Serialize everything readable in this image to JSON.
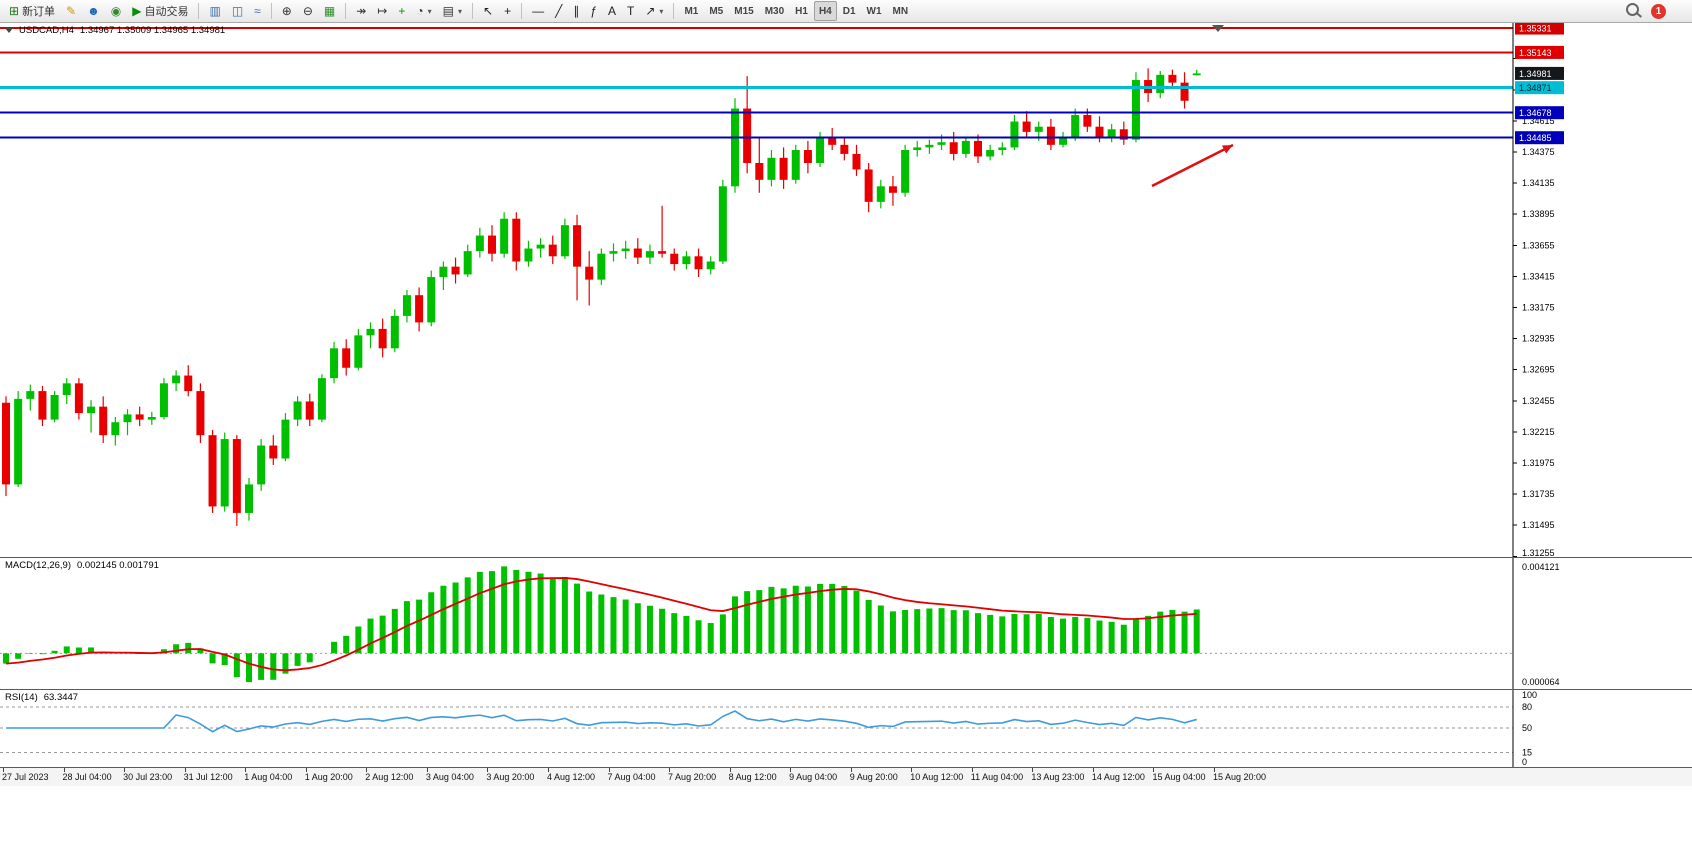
{
  "toolbar": {
    "groups": [
      {
        "name": "trade",
        "buttons": [
          {
            "name": "new-order",
            "glyph": "⊞",
            "color": "#1a7a1a",
            "label": "新订单"
          },
          {
            "name": "metaeditor",
            "glyph": "✎",
            "color": "#c8960c"
          },
          {
            "name": "mql-community",
            "glyph": "☻",
            "color": "#1565c0"
          },
          {
            "name": "news",
            "glyph": "◉",
            "color": "#2e8b2e"
          },
          {
            "name": "auto-trading",
            "glyph": "▶",
            "color": "#0a8f0a",
            "label": "自动交易"
          }
        ]
      },
      {
        "name": "chart-types",
        "buttons": [
          {
            "name": "bar-chart",
            "glyph": "▥",
            "color": "#3a6ea5"
          },
          {
            "name": "candlestick-chart",
            "glyph": "◫",
            "color": "#3a6ea5"
          },
          {
            "name": "line-chart",
            "glyph": "≈",
            "color": "#3a6ea5"
          }
        ]
      },
      {
        "name": "zoom",
        "buttons": [
          {
            "name": "zoom-in",
            "glyph": "⊕",
            "color": "#333333"
          },
          {
            "name": "zoom-out",
            "glyph": "⊖",
            "color": "#333333"
          },
          {
            "name": "tile-windows",
            "glyph": "▦",
            "color": "#2e8b2e"
          }
        ]
      },
      {
        "name": "chart-controls",
        "buttons": [
          {
            "name": "auto-scroll",
            "glyph": "↠",
            "color": "#333333"
          },
          {
            "name": "chart-shift",
            "glyph": "↦",
            "color": "#333333"
          },
          {
            "name": "indicators",
            "glyph": "+",
            "color": "#0a8f0a"
          },
          {
            "name": "periods",
            "glyph": "◔",
            "color": "#333333",
            "dropdown": true
          },
          {
            "name": "templates",
            "glyph": "▤",
            "color": "#333333",
            "dropdown": true
          }
        ]
      },
      {
        "name": "cursor-tools",
        "buttons": [
          {
            "name": "cursor",
            "glyph": "↖",
            "color": "#222222"
          },
          {
            "name": "crosshair",
            "glyph": "+",
            "color": "#222222"
          }
        ]
      },
      {
        "name": "line-tools",
        "buttons": [
          {
            "name": "horizontal-line",
            "glyph": "—",
            "color": "#222222"
          },
          {
            "name": "trendline",
            "glyph": "╱",
            "color": "#222222"
          },
          {
            "name": "equidistant-channel",
            "glyph": "∥",
            "color": "#222222"
          },
          {
            "name": "fibonacci",
            "glyph": "ƒ",
            "color": "#222222"
          },
          {
            "name": "text",
            "glyph": "A",
            "color": "#222222"
          },
          {
            "name": "text-label",
            "glyph": "T",
            "color": "#222222"
          },
          {
            "name": "arrows",
            "glyph": "↗",
            "color": "#222222",
            "dropdown": true
          }
        ]
      }
    ],
    "timeframes": {
      "items": [
        "M1",
        "M5",
        "M15",
        "M30",
        "H1",
        "H4",
        "D1",
        "W1",
        "MN"
      ],
      "active": "H4"
    },
    "right": {
      "search_name": "search",
      "notification_count": "1"
    }
  },
  "chart": {
    "header": {
      "symbol_period": "USDCAD,H4",
      "ohlc": "1.34967 1.35009 1.34965 1.34981"
    },
    "y_axis": {
      "start": 1.31255,
      "step": 0.0024,
      "count": 17,
      "decimals": 5
    },
    "levels": [
      {
        "price": 1.35331,
        "label": "1.35331",
        "color": "#d40000",
        "text": "#ffffff",
        "width": 2
      },
      {
        "price": 1.35143,
        "label": "1.35143",
        "color": "#e00000",
        "text": "#ffffff",
        "width": 2
      },
      {
        "price": 1.34871,
        "label": "1.34871",
        "color": "#00bcd4",
        "text": "#00262e",
        "width": 3
      },
      {
        "price": 1.34678,
        "label": "1.34678",
        "color": "#0000bb",
        "text": "#ffffff",
        "width": 2
      },
      {
        "price": 1.34485,
        "label": "1.34485",
        "color": "#0000bb",
        "text": "#ffffff",
        "width": 2
      }
    ],
    "bid": {
      "price": 1.34981,
      "label": "1.34981",
      "color": "#14181c",
      "text": "#ffffff"
    },
    "arrow": {
      "from": [
        1152,
        163
      ],
      "to": [
        1233,
        122
      ],
      "color": "#e01010"
    },
    "candle_colors": {
      "up": "#00bf00",
      "down": "#e80000"
    }
  },
  "chart_data": {
    "type": "candlestick",
    "symbol": "USDCAD",
    "timeframe": "H4",
    "y_range": [
      1.3125,
      1.3537
    ],
    "x_labels": [
      "27 Jul 2023",
      "28 Jul 04:00",
      "30 Jul 23:00",
      "31 Jul 12:00",
      "1 Aug 04:00",
      "1 Aug 20:00",
      "2 Aug 12:00",
      "3 Aug 04:00",
      "3 Aug 20:00",
      "4 Aug 12:00",
      "7 Aug 04:00",
      "7 Aug 20:00",
      "8 Aug 12:00",
      "9 Aug 04:00",
      "9 Aug 20:00",
      "10 Aug 12:00",
      "11 Aug 04:00",
      "13 Aug 23:00",
      "14 Aug 12:00",
      "15 Aug 04:00",
      "15 Aug 20:00"
    ],
    "ohlc": [
      [
        1.3244,
        1.3249,
        1.3172,
        1.3181
      ],
      [
        1.3181,
        1.3253,
        1.3179,
        1.3247
      ],
      [
        1.3247,
        1.3258,
        1.3238,
        1.3253
      ],
      [
        1.3253,
        1.3257,
        1.3226,
        1.3231
      ],
      [
        1.3231,
        1.3253,
        1.3229,
        1.325
      ],
      [
        1.325,
        1.3263,
        1.3243,
        1.3259
      ],
      [
        1.3259,
        1.3263,
        1.3231,
        1.3236
      ],
      [
        1.3236,
        1.3246,
        1.3221,
        1.3241
      ],
      [
        1.3241,
        1.3249,
        1.3213,
        1.3219
      ],
      [
        1.3219,
        1.3233,
        1.3211,
        1.3229
      ],
      [
        1.3229,
        1.3239,
        1.3219,
        1.3235
      ],
      [
        1.3235,
        1.3241,
        1.3226,
        1.3231
      ],
      [
        1.3231,
        1.3237,
        1.3227,
        1.3233
      ],
      [
        1.3233,
        1.3263,
        1.3231,
        1.3259
      ],
      [
        1.3259,
        1.3269,
        1.3253,
        1.3265
      ],
      [
        1.3265,
        1.3273,
        1.3249,
        1.3253
      ],
      [
        1.3253,
        1.3259,
        1.3213,
        1.3219
      ],
      [
        1.3219,
        1.3223,
        1.3159,
        1.3164
      ],
      [
        1.3164,
        1.3221,
        1.316,
        1.3216
      ],
      [
        1.3216,
        1.3219,
        1.3149,
        1.3159
      ],
      [
        1.3159,
        1.3186,
        1.3153,
        1.3181
      ],
      [
        1.3181,
        1.3216,
        1.3176,
        1.3211
      ],
      [
        1.3211,
        1.3219,
        1.3196,
        1.3201
      ],
      [
        1.3201,
        1.3236,
        1.3199,
        1.3231
      ],
      [
        1.3231,
        1.3249,
        1.3226,
        1.3245
      ],
      [
        1.3245,
        1.3251,
        1.3226,
        1.3231
      ],
      [
        1.3231,
        1.3266,
        1.3229,
        1.3263
      ],
      [
        1.3263,
        1.3291,
        1.3259,
        1.3286
      ],
      [
        1.3286,
        1.3293,
        1.3265,
        1.3271
      ],
      [
        1.3271,
        1.3301,
        1.3269,
        1.3296
      ],
      [
        1.3296,
        1.3306,
        1.3286,
        1.3301
      ],
      [
        1.3301,
        1.3309,
        1.3279,
        1.3286
      ],
      [
        1.3286,
        1.3316,
        1.3283,
        1.3311
      ],
      [
        1.3311,
        1.3331,
        1.3306,
        1.3327
      ],
      [
        1.3327,
        1.3333,
        1.3299,
        1.3306
      ],
      [
        1.3306,
        1.3346,
        1.3303,
        1.3341
      ],
      [
        1.3341,
        1.3353,
        1.3331,
        1.3349
      ],
      [
        1.3349,
        1.3356,
        1.3336,
        1.3343
      ],
      [
        1.3343,
        1.3366,
        1.3341,
        1.3361
      ],
      [
        1.3361,
        1.3379,
        1.3356,
        1.3373
      ],
      [
        1.3373,
        1.3381,
        1.3353,
        1.3359
      ],
      [
        1.3359,
        1.3391,
        1.3356,
        1.3386
      ],
      [
        1.3386,
        1.3391,
        1.3346,
        1.3353
      ],
      [
        1.3353,
        1.3369,
        1.3349,
        1.3363
      ],
      [
        1.3363,
        1.3371,
        1.3356,
        1.3366
      ],
      [
        1.3366,
        1.3373,
        1.3351,
        1.3357
      ],
      [
        1.3357,
        1.3386,
        1.3355,
        1.3381
      ],
      [
        1.3381,
        1.3389,
        1.3323,
        1.3349
      ],
      [
        1.3349,
        1.3361,
        1.3319,
        1.3339
      ],
      [
        1.3339,
        1.3363,
        1.3335,
        1.3359
      ],
      [
        1.3359,
        1.3367,
        1.3353,
        1.3361
      ],
      [
        1.3361,
        1.3369,
        1.3355,
        1.3363
      ],
      [
        1.3363,
        1.3371,
        1.3351,
        1.3356
      ],
      [
        1.3356,
        1.3366,
        1.3351,
        1.3361
      ],
      [
        1.3361,
        1.3396,
        1.3356,
        1.3359
      ],
      [
        1.3359,
        1.3363,
        1.3346,
        1.3351
      ],
      [
        1.3351,
        1.3361,
        1.3347,
        1.3357
      ],
      [
        1.3357,
        1.3363,
        1.3341,
        1.3347
      ],
      [
        1.3347,
        1.3357,
        1.3343,
        1.3353
      ],
      [
        1.3353,
        1.3416,
        1.3351,
        1.3411
      ],
      [
        1.3411,
        1.3479,
        1.3406,
        1.3471
      ],
      [
        1.3471,
        1.3496,
        1.3421,
        1.3429
      ],
      [
        1.3429,
        1.3449,
        1.3406,
        1.3416
      ],
      [
        1.3416,
        1.3439,
        1.3411,
        1.3433
      ],
      [
        1.3433,
        1.3441,
        1.3409,
        1.3416
      ],
      [
        1.3416,
        1.3443,
        1.3413,
        1.3439
      ],
      [
        1.3439,
        1.3446,
        1.3421,
        1.3429
      ],
      [
        1.3429,
        1.3453,
        1.3426,
        1.3449
      ],
      [
        1.3449,
        1.3456,
        1.3439,
        1.3443
      ],
      [
        1.3443,
        1.3449,
        1.3431,
        1.3436
      ],
      [
        1.3436,
        1.3443,
        1.3419,
        1.3424
      ],
      [
        1.3424,
        1.3429,
        1.3391,
        1.3399
      ],
      [
        1.3399,
        1.3416,
        1.3394,
        1.3411
      ],
      [
        1.3411,
        1.3419,
        1.3396,
        1.3406
      ],
      [
        1.3406,
        1.3443,
        1.3403,
        1.3439
      ],
      [
        1.3439,
        1.3446,
        1.3434,
        1.3441
      ],
      [
        1.3441,
        1.3447,
        1.3436,
        1.3443
      ],
      [
        1.3443,
        1.3451,
        1.3439,
        1.3445
      ],
      [
        1.3445,
        1.3453,
        1.3431,
        1.3436
      ],
      [
        1.3436,
        1.3449,
        1.3433,
        1.3446
      ],
      [
        1.3446,
        1.3451,
        1.3429,
        1.3434
      ],
      [
        1.3434,
        1.3443,
        1.3431,
        1.3439
      ],
      [
        1.3439,
        1.3445,
        1.3435,
        1.3441
      ],
      [
        1.3441,
        1.3466,
        1.3439,
        1.3461
      ],
      [
        1.3461,
        1.3469,
        1.3449,
        1.3453
      ],
      [
        1.3453,
        1.3461,
        1.3446,
        1.3457
      ],
      [
        1.3457,
        1.3463,
        1.3439,
        1.3443
      ],
      [
        1.3443,
        1.3453,
        1.3441,
        1.3449
      ],
      [
        1.3449,
        1.3471,
        1.3446,
        1.3466
      ],
      [
        1.3466,
        1.3471,
        1.3453,
        1.3457
      ],
      [
        1.3457,
        1.3465,
        1.3445,
        1.3449
      ],
      [
        1.3449,
        1.3459,
        1.3445,
        1.3455
      ],
      [
        1.3455,
        1.3461,
        1.3443,
        1.3447
      ],
      [
        1.3447,
        1.3499,
        1.3445,
        1.3493
      ],
      [
        1.3493,
        1.3502,
        1.3476,
        1.3483
      ],
      [
        1.3483,
        1.35,
        1.3479,
        1.3497
      ],
      [
        1.3497,
        1.3501,
        1.3486,
        1.3491
      ],
      [
        1.3491,
        1.3499,
        1.3471,
        1.3477
      ],
      [
        1.34967,
        1.35009,
        1.34965,
        1.34981
      ]
    ]
  },
  "indicators": {
    "macd": {
      "title": "MACD(12,26,9)",
      "values": "0.002145 0.001791",
      "params": [
        12,
        26,
        9
      ],
      "axis_max": "0.004121",
      "axis_min": "0.000064",
      "hist_color": "#00c000",
      "signal_color": "#e00000"
    },
    "rsi": {
      "title": "RSI(14)",
      "value": "63.3447",
      "period": 14,
      "axis_labels": [
        "100",
        "80",
        "50",
        "15",
        "0"
      ],
      "levels": [
        80,
        50,
        15
      ],
      "line_color": "#3e9ade"
    }
  }
}
